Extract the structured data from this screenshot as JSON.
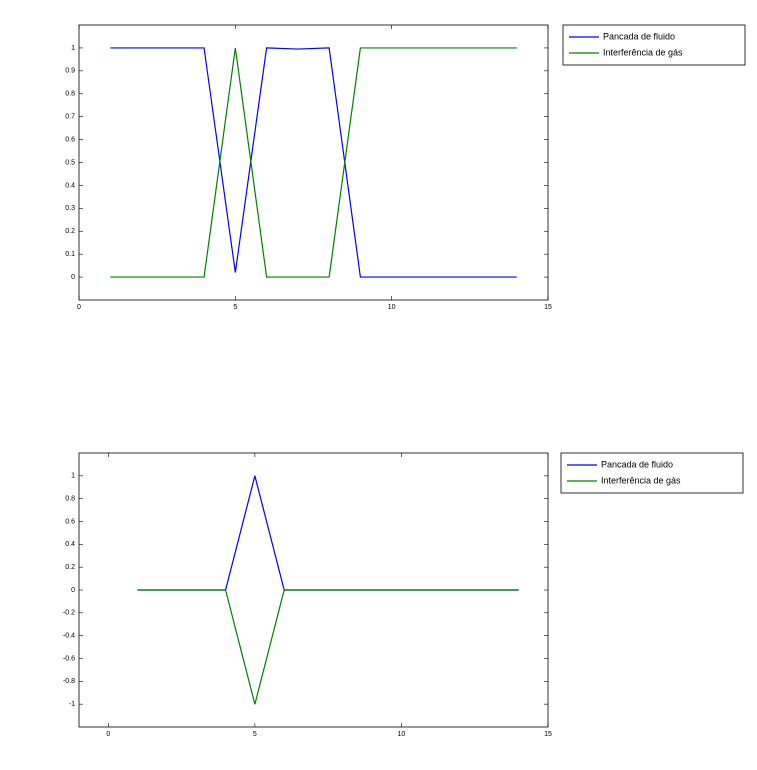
{
  "chart_data": [
    {
      "type": "line",
      "x": [
        1,
        2,
        3,
        4,
        5,
        6,
        7,
        8,
        9,
        10,
        11,
        12,
        13,
        14
      ],
      "series": [
        {
          "name": "Pancada de fluido",
          "color": "#0000ff",
          "values": [
            1,
            1,
            1,
            1,
            0.02,
            1,
            0.995,
            1,
            0,
            0,
            0,
            0,
            0,
            0
          ]
        },
        {
          "name": "Interferência de gás",
          "color": "#008000",
          "values": [
            0,
            0,
            0,
            0,
            1,
            0,
            0,
            0,
            1,
            1,
            1,
            1,
            1,
            1
          ]
        }
      ],
      "xlim": [
        0,
        15
      ],
      "xticks": [
        0,
        5,
        10,
        15
      ],
      "ylim": [
        -0.1,
        1.1
      ],
      "yticks": [
        0,
        0.1,
        0.2,
        0.3,
        0.4,
        0.5,
        0.6,
        0.7,
        0.8,
        0.9,
        1
      ],
      "legend": "outside-right"
    },
    {
      "type": "line",
      "x": [
        1,
        2,
        3,
        4,
        5,
        6,
        7,
        8,
        9,
        10,
        11,
        12,
        13,
        14
      ],
      "series": [
        {
          "name": "Pancada de fluido",
          "color": "#0000ff",
          "values": [
            0,
            0,
            0,
            0,
            1,
            0,
            0,
            0,
            0,
            0,
            0,
            0,
            0,
            0
          ]
        },
        {
          "name": "Interferência de gás",
          "color": "#008000",
          "values": [
            0,
            0,
            0,
            0,
            -1,
            0,
            0,
            0,
            0,
            0,
            0,
            0,
            0,
            0
          ]
        }
      ],
      "xlim": [
        -1,
        15
      ],
      "xticks": [
        0,
        5,
        10,
        15
      ],
      "ylim": [
        -1.2,
        1.2
      ],
      "yticks": [
        -1,
        -0.8,
        -0.6,
        -0.4,
        -0.2,
        0,
        0.2,
        0.4,
        0.6,
        0.8,
        1
      ],
      "legend": "outside-right"
    }
  ]
}
